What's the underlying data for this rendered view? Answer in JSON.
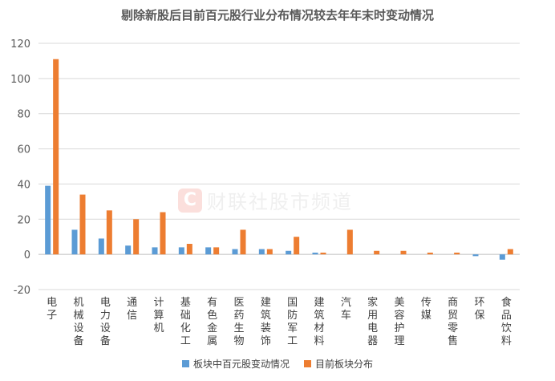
{
  "watermark": {
    "logo": "C",
    "text": "财联社股市频道"
  },
  "colors": {
    "series1": "#5B9BD5",
    "series2": "#ED7D31",
    "grid": "#D9D9D9",
    "axis": "#BFBFBF"
  },
  "chart_data": {
    "type": "bar",
    "title": "剔除新股后目前百元股行业分布情况较去年年末时变动情况",
    "xlabel": "",
    "ylabel": "",
    "ylim": [
      -20,
      120
    ],
    "yticks": [
      -20,
      0,
      20,
      40,
      60,
      80,
      100,
      120
    ],
    "grid": true,
    "legend_position": "bottom",
    "categories": [
      "电子",
      "机械设备",
      "电力设备",
      "通信",
      "计算机",
      "基础化工",
      "有色金属",
      "医药生物",
      "建筑装饰",
      "国防军工",
      "建筑材料",
      "汽车",
      "家用电器",
      "美容护理",
      "传媒",
      "商贸零售",
      "环保",
      "食品饮料"
    ],
    "series": [
      {
        "name": "板块中百元股变动情况",
        "values": [
          39,
          14,
          9,
          5,
          4,
          4,
          4,
          3,
          3,
          2,
          1,
          0,
          0,
          0,
          0,
          0,
          -1,
          -3
        ]
      },
      {
        "name": "目前板块分布",
        "values": [
          111,
          34,
          25,
          20,
          24,
          6,
          4,
          14,
          3,
          10,
          1,
          14,
          2,
          2,
          1,
          1,
          0,
          3
        ]
      }
    ]
  }
}
